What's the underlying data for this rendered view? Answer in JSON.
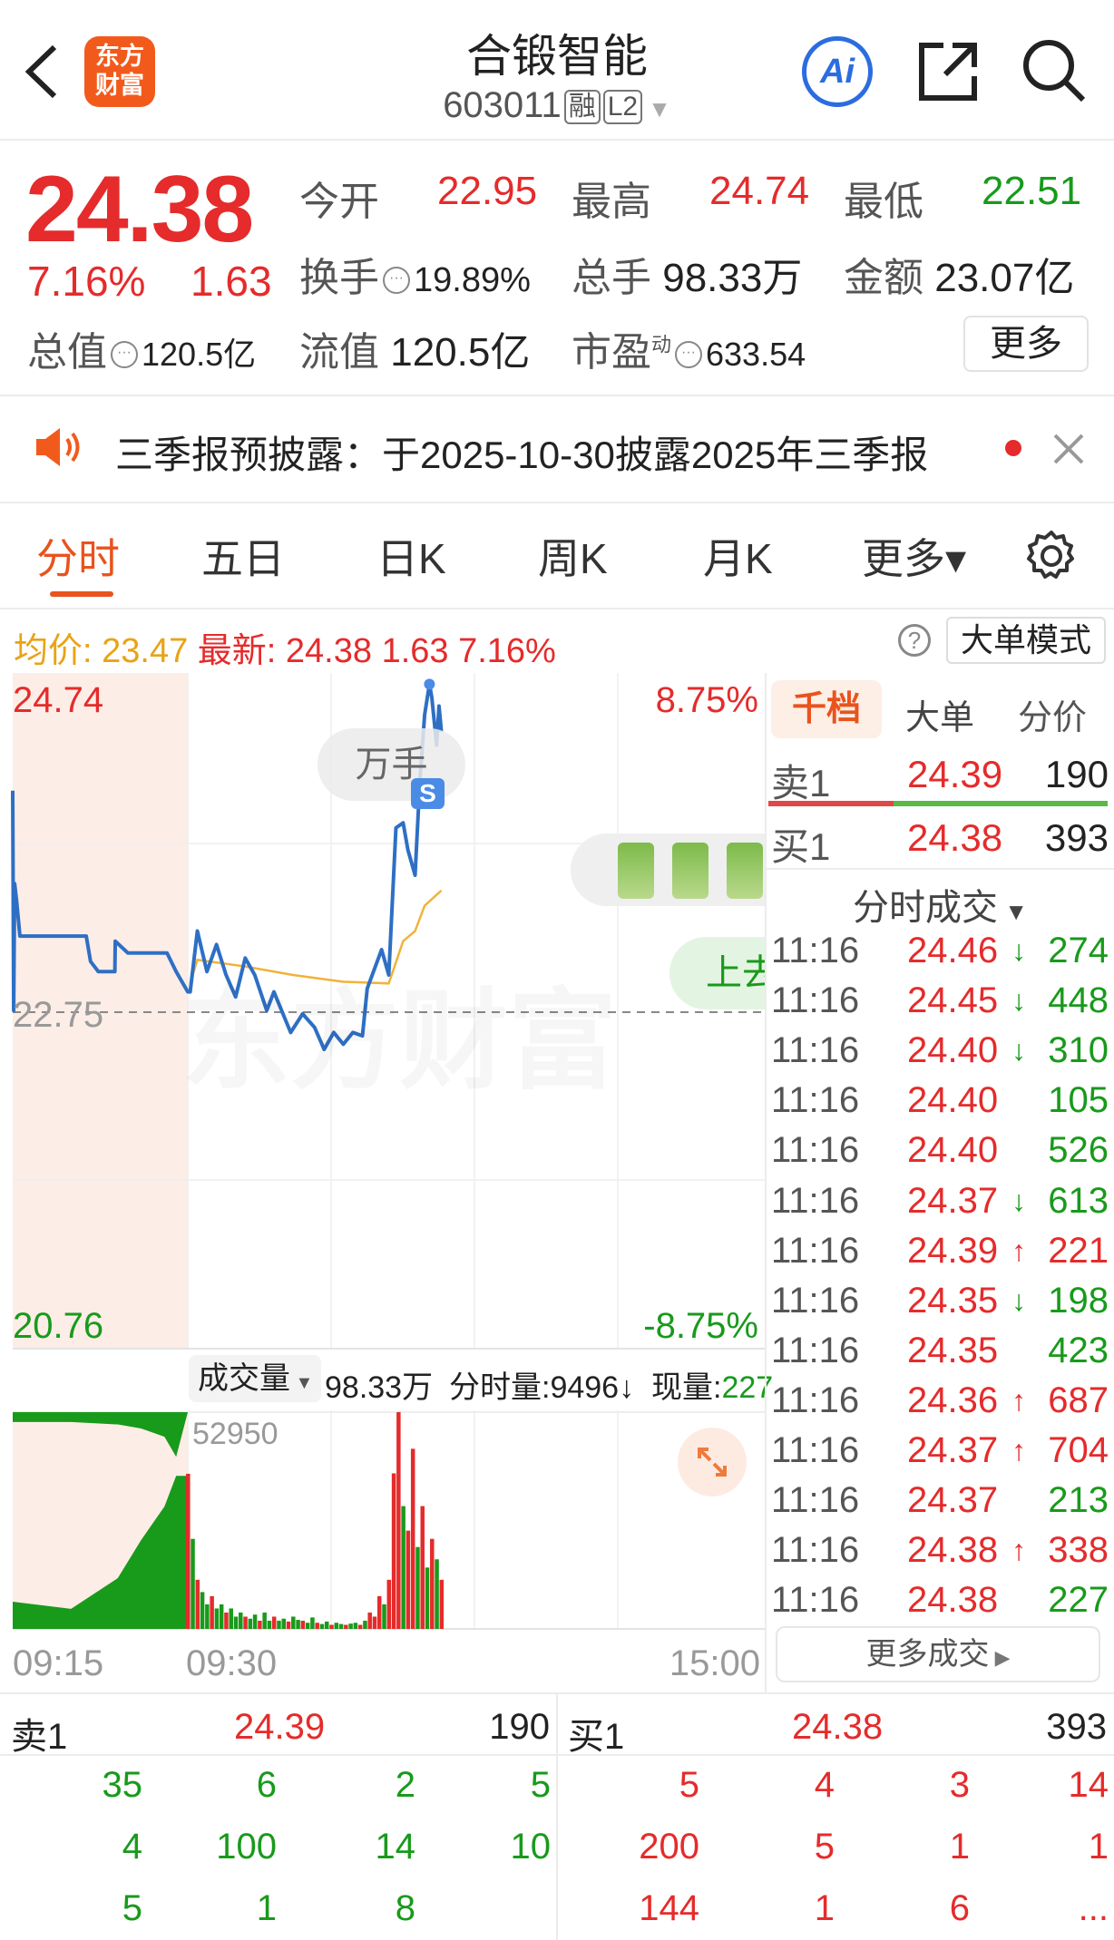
{
  "header": {
    "title": "合锻智能",
    "code": "603011",
    "badge_margin": "融",
    "badge_level": "L2",
    "logo_text": "东方财富",
    "ai_label": "Ai"
  },
  "quote": {
    "price": "24.38",
    "change_pct": "7.16%",
    "change": "1.63",
    "open_label": "今开",
    "open": "22.95",
    "high_label": "最高",
    "high": "24.74",
    "low_label": "最低",
    "low": "22.51",
    "turnover_label": "换手",
    "turnover": "19.89%",
    "volume_label": "总手",
    "volume": "98.33万",
    "amount_label": "金额",
    "amount": "23.07亿",
    "mktcap_label": "总值",
    "mktcap": "120.5亿",
    "float_label": "流值",
    "float_cap": "120.5亿",
    "pe_label": "市盈",
    "pe_sup": "动",
    "pe": "633.54",
    "more_label": "更多"
  },
  "notice": {
    "text": "三季报预披露：于2025-10-30披露2025年三季报"
  },
  "tabs": [
    {
      "label": "分时",
      "active": true
    },
    {
      "label": "五日"
    },
    {
      "label": "日K"
    },
    {
      "label": "周K"
    },
    {
      "label": "月K"
    },
    {
      "label": "更多▾"
    }
  ],
  "info": {
    "avg_label": "均价:",
    "avg": "23.47",
    "latest_label": "最新:",
    "latest": "24.38",
    "change": "1.63",
    "change_pct": "7.16%",
    "mode_button": "大单模式"
  },
  "colors": {
    "up": "#E52B2B",
    "down": "#189A1B",
    "accent": "#E8531E",
    "price_line": "#2E6FC4",
    "avg_line": "#F0B33A",
    "premarket_bg": "#FDEDE7"
  },
  "chart_data": {
    "type": "line",
    "y_labels": {
      "top": "24.74",
      "mid": "22.75",
      "bottom": "20.76",
      "top_pct": "8.75%",
      "bottom_pct": "-8.75%"
    },
    "ylim": [
      20.76,
      24.74
    ],
    "prev_close": 22.75,
    "x_labels": [
      "09:15",
      "09:30",
      "15:00"
    ],
    "price": [
      [
        "09:15:00",
        24.06
      ],
      [
        "09:15:05",
        22.76
      ],
      [
        "09:15:10",
        23.51
      ],
      [
        "09:15:20",
        23.41
      ],
      [
        "09:15:37",
        23.2
      ],
      [
        "09:21:18",
        23.2
      ],
      [
        "09:21:40",
        23.05
      ],
      [
        "09:22:20",
        22.99
      ],
      [
        "09:23:45",
        22.99
      ],
      [
        "09:23:47",
        23.17
      ],
      [
        "09:24:52",
        23.1
      ],
      [
        "09:28:13",
        23.1
      ],
      [
        "09:29:00",
        22.99
      ],
      [
        "09:29:30",
        22.93
      ],
      [
        "09:30:00",
        22.87
      ],
      [
        "09:31:00",
        22.87
      ],
      [
        "09:34:00",
        23.23
      ],
      [
        "09:38:00",
        22.99
      ],
      [
        "09:42:00",
        23.15
      ],
      [
        "09:46:00",
        22.97
      ],
      [
        "09:50:00",
        22.84
      ],
      [
        "09:54:00",
        23.07
      ],
      [
        "09:58:00",
        22.97
      ],
      [
        "10:03:00",
        22.76
      ],
      [
        "10:06:00",
        22.87
      ],
      [
        "10:13:00",
        22.63
      ],
      [
        "10:18:00",
        22.74
      ],
      [
        "10:23:00",
        22.66
      ],
      [
        "10:27:00",
        22.53
      ],
      [
        "10:31:00",
        22.63
      ],
      [
        "10:35:00",
        22.56
      ],
      [
        "10:39:00",
        22.63
      ],
      [
        "10:43:00",
        22.61
      ],
      [
        "10:45:00",
        22.89
      ],
      [
        "10:51:00",
        23.12
      ],
      [
        "10:54:00",
        22.97
      ],
      [
        "10:57:00",
        23.84
      ],
      [
        "11:00:00",
        23.87
      ],
      [
        "11:02:00",
        23.71
      ],
      [
        "11:05:00",
        23.56
      ],
      [
        "11:07:00",
        24.12
      ],
      [
        "11:09:00",
        24.51
      ],
      [
        "11:11:00",
        24.69
      ],
      [
        "11:12:00",
        24.61
      ],
      [
        "11:14:00",
        24.33
      ],
      [
        "11:15:00",
        24.56
      ],
      [
        "11:16:00",
        24.41
      ]
    ],
    "avg": [
      [
        "09:31:00",
        22.92
      ],
      [
        "09:34:00",
        23.06
      ],
      [
        "09:54:00",
        23.02
      ],
      [
        "10:14:00",
        22.97
      ],
      [
        "10:35:00",
        22.93
      ],
      [
        "10:54:00",
        22.92
      ],
      [
        "11:00:00",
        23.17
      ],
      [
        "11:05:00",
        23.23
      ],
      [
        "11:09:00",
        23.38
      ],
      [
        "11:16:00",
        23.47
      ]
    ],
    "volume_max_label": "52950",
    "volume_max": 52950,
    "auction_area": [
      [
        "09:15",
        6650,
        2400
      ],
      [
        "09:20",
        4900,
        2400
      ],
      [
        "09:24",
        12400,
        3000
      ],
      [
        "09:26",
        21700,
        4000
      ],
      [
        "09:28",
        29900,
        6000
      ],
      [
        "09:29",
        37400,
        10900
      ]
    ],
    "volume": [
      [
        "09:30",
        37900,
        "up"
      ],
      [
        "09:32",
        22000,
        "down"
      ],
      [
        "09:34",
        12000,
        "up"
      ],
      [
        "09:36",
        9000,
        "down"
      ],
      [
        "09:38",
        6000,
        "down"
      ],
      [
        "09:40",
        8000,
        "up"
      ],
      [
        "09:42",
        5000,
        "down"
      ],
      [
        "09:44",
        6000,
        "down"
      ],
      [
        "09:46",
        4000,
        "up"
      ],
      [
        "09:48",
        5000,
        "down"
      ],
      [
        "09:50",
        3000,
        "down"
      ],
      [
        "09:52",
        4000,
        "down"
      ],
      [
        "09:54",
        3000,
        "up"
      ],
      [
        "09:56",
        2500,
        "down"
      ],
      [
        "09:58",
        3500,
        "down"
      ],
      [
        "10:00",
        2000,
        "up"
      ],
      [
        "10:02",
        4000,
        "down"
      ],
      [
        "10:04",
        2000,
        "down"
      ],
      [
        "10:06",
        3000,
        "up"
      ],
      [
        "10:08",
        2000,
        "down"
      ],
      [
        "10:10",
        2500,
        "down"
      ],
      [
        "10:12",
        1800,
        "up"
      ],
      [
        "10:14",
        3000,
        "down"
      ],
      [
        "10:16",
        2200,
        "down"
      ],
      [
        "10:18",
        2000,
        "up"
      ],
      [
        "10:20",
        1500,
        "down"
      ],
      [
        "10:22",
        2800,
        "down"
      ],
      [
        "10:24",
        1500,
        "up"
      ],
      [
        "10:26",
        1200,
        "down"
      ],
      [
        "10:28",
        1800,
        "down"
      ],
      [
        "10:30",
        1000,
        "up"
      ],
      [
        "10:32",
        1500,
        "down"
      ],
      [
        "10:34",
        1200,
        "down"
      ],
      [
        "10:36",
        1000,
        "up"
      ],
      [
        "10:38",
        1300,
        "down"
      ],
      [
        "10:40",
        1500,
        "down"
      ],
      [
        "10:42",
        1000,
        "up"
      ],
      [
        "10:44",
        2000,
        "down"
      ],
      [
        "10:46",
        4000,
        "up"
      ],
      [
        "10:48",
        3000,
        "up"
      ],
      [
        "10:50",
        8000,
        "up"
      ],
      [
        "10:52",
        6000,
        "down"
      ],
      [
        "10:54",
        12000,
        "up"
      ],
      [
        "10:56",
        38000,
        "up"
      ],
      [
        "10:58",
        52950,
        "up"
      ],
      [
        "11:00",
        30000,
        "down"
      ],
      [
        "11:02",
        24000,
        "up"
      ],
      [
        "11:04",
        44000,
        "up"
      ],
      [
        "11:06",
        20000,
        "down"
      ],
      [
        "11:08",
        30000,
        "up"
      ],
      [
        "11:10",
        15000,
        "down"
      ],
      [
        "11:12",
        22000,
        "up"
      ],
      [
        "11:14",
        17000,
        "down"
      ],
      [
        "11:16",
        12000,
        "up"
      ]
    ]
  },
  "chart_overlays": {
    "unit_pill": "万手",
    "s_badge": "S",
    "watermark": "东方财富",
    "up_pill": "上去"
  },
  "volume_header": {
    "selector": "成交量",
    "total": "98.33万",
    "minute_vol": "分时量:9496↓",
    "current_label": "现量:",
    "current": "227"
  },
  "side_panel": {
    "tabs": [
      "千档",
      "大单",
      "分价"
    ],
    "ask": {
      "label": "卖1",
      "price": "24.39",
      "vol": "190"
    },
    "bid": {
      "label": "买1",
      "price": "24.38",
      "vol": "393"
    },
    "bid_ratio": 0.37,
    "trades_title": "分时成交",
    "trades": [
      [
        "11:16",
        "24.46",
        "↓",
        "274"
      ],
      [
        "11:16",
        "24.45",
        "↓",
        "448"
      ],
      [
        "11:16",
        "24.40",
        "↓",
        "310"
      ],
      [
        "11:16",
        "24.40",
        "",
        "105"
      ],
      [
        "11:16",
        "24.40",
        "",
        "526"
      ],
      [
        "11:16",
        "24.37",
        "↓",
        "613"
      ],
      [
        "11:16",
        "24.39",
        "↑",
        "221"
      ],
      [
        "11:16",
        "24.35",
        "↓",
        "198"
      ],
      [
        "11:16",
        "24.35",
        "",
        "423"
      ],
      [
        "11:16",
        "24.36",
        "↑",
        "687"
      ],
      [
        "11:16",
        "24.37",
        "↑",
        "704"
      ],
      [
        "11:16",
        "24.37",
        "",
        "213"
      ],
      [
        "11:16",
        "24.38",
        "↑",
        "338"
      ],
      [
        "11:16",
        "24.38",
        "",
        "227"
      ]
    ],
    "more_trades": "更多成交"
  },
  "orderbook": {
    "ask": {
      "label": "卖1",
      "price": "24.39",
      "vol": "190",
      "queue": [
        [
          "35",
          "6",
          "2",
          "5"
        ],
        [
          "4",
          "100",
          "14",
          "10"
        ],
        [
          "5",
          "1",
          "8",
          ""
        ]
      ]
    },
    "bid": {
      "label": "买1",
      "price": "24.38",
      "vol": "393",
      "queue": [
        [
          "5",
          "4",
          "3",
          "14"
        ],
        [
          "200",
          "5",
          "1",
          "1"
        ],
        [
          "144",
          "1",
          "6",
          "..."
        ]
      ]
    }
  }
}
